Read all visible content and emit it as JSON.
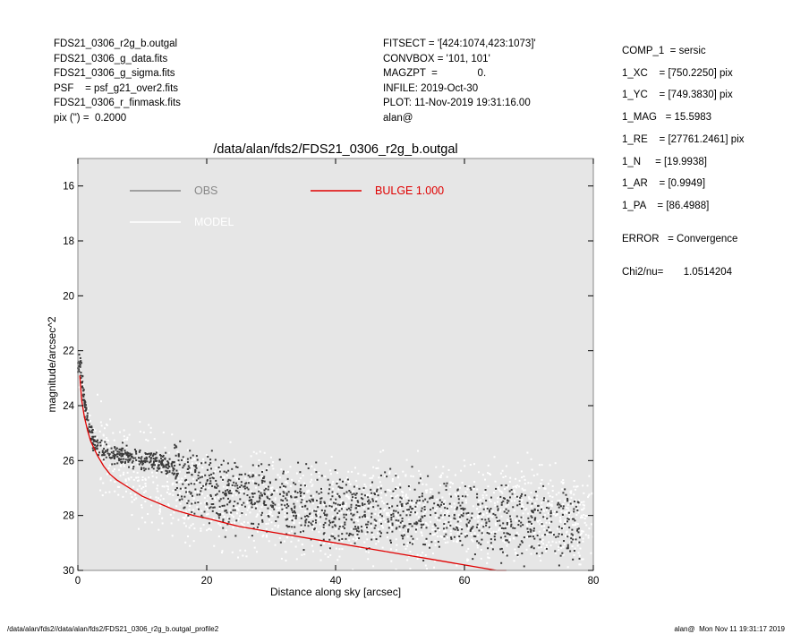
{
  "header_left": [
    "FDS21_0306_r2g_b.outgal",
    "FDS21_0306_g_data.fits",
    "FDS21_0306_g_sigma.fits",
    "PSF    = psf_g21_over2.fits",
    "FDS21_0306_r_finmask.fits",
    "pix (\") =  0.2000"
  ],
  "header_mid": [
    "FITSECT = '[424:1074,423:1073]'",
    "CONVBOX = '101, 101'",
    "MAGZPT  =              0.",
    "INFILE: 2019-Oct-30",
    "PLOT: 11-Nov-2019 19:31:16.00",
    "alan@"
  ],
  "params": [
    "COMP_1  = sersic",
    "1_XC    = [750.2250] pix",
    "1_YC    = [749.3830] pix",
    "1_MAG   = 15.5983",
    "1_RE    = [27761.2461] pix",
    "1_N     = [19.9938]",
    "1_AR    = [0.9949]",
    "1_PA    = [86.4988]",
    "ERROR   = Convergence",
    "Chi2/nu=       1.0514204"
  ],
  "footer_left": "/data/alan/fds2//data/alan/fds2/FDS21_0306_r2g_b.outgal_profile2",
  "footer_right": "alan@  Mon Nov 11 19:31:17 2019",
  "colors": {
    "plot_bg": "#e6e6e6",
    "obs": "#3a3a3a",
    "model": "#ffffff",
    "bulge": "#e00000",
    "obs_legend": "#888888"
  },
  "chart_data": {
    "type": "scatter",
    "title": "/data/alan/fds2/FDS21_0306_r2g_b.outgal",
    "xlabel": "Distance along sky [arcsec]",
    "ylabel": "magnitude/arcsec^2",
    "xlim": [
      0,
      80
    ],
    "ylim": [
      30,
      15
    ],
    "y_inverted": true,
    "xticks": [
      0,
      20,
      40,
      60,
      80
    ],
    "yticks": [
      16,
      18,
      20,
      22,
      24,
      26,
      28,
      30
    ],
    "legend": [
      {
        "label": "OBS",
        "color": "#888888"
      },
      {
        "label": "MODEL",
        "color": "#ffffff"
      },
      {
        "label": "BULGE  1.000",
        "color": "#e00000"
      }
    ],
    "series": [
      {
        "name": "OBS",
        "x": [
          0.4,
          0.6,
          0.9,
          1.2,
          1.5,
          1.8,
          2.1,
          2.5,
          3.0,
          3.5,
          4.0,
          4.5,
          5.0,
          5.5,
          6.0,
          7.0,
          8.0,
          9.0,
          10.0,
          11.0,
          12.0,
          13.0,
          14.0,
          15.0,
          16.0,
          17.0,
          18.0,
          20.0,
          22.0,
          24.0,
          26.0,
          28.0,
          30.0,
          32.0,
          34.0,
          36.0,
          38.0,
          40.0,
          42.0,
          44.0,
          46.0,
          48.0,
          50.0,
          52.0,
          54.0,
          56.0,
          58.0,
          60.0,
          62.0,
          64.0,
          66.0,
          68.0,
          70.0,
          72.0,
          74.0,
          76.0,
          78.0
        ],
        "y": [
          22.5,
          23.0,
          23.6,
          24.2,
          24.5,
          24.8,
          25.0,
          25.2,
          25.4,
          25.5,
          25.6,
          25.6,
          25.7,
          25.7,
          25.8,
          25.8,
          25.9,
          25.9,
          26.0,
          26.0,
          26.0,
          26.1,
          26.2,
          26.3,
          26.5,
          26.6,
          26.7,
          26.9,
          27.1,
          27.2,
          27.3,
          27.4,
          27.5,
          27.5,
          27.6,
          27.7,
          27.7,
          27.8,
          27.8,
          27.9,
          27.9,
          27.9,
          28.0,
          28.0,
          28.0,
          28.1,
          28.1,
          28.1,
          28.2,
          28.2,
          28.2,
          28.3,
          28.3,
          28.3,
          28.3,
          28.4,
          28.4
        ],
        "scatter_sigma": 0.7
      },
      {
        "name": "MODEL",
        "x": [
          0.5,
          1.0,
          2.0,
          3.0,
          5.0,
          8.0,
          10.0,
          15.0,
          20.0,
          25.0,
          30.0,
          35.0,
          40.0,
          45.0,
          50.0,
          55.0,
          60.0,
          65.0,
          70.0,
          75.0,
          80.0
        ],
        "y": [
          23.0,
          23.8,
          24.9,
          25.4,
          25.9,
          26.3,
          26.6,
          27.0,
          27.3,
          27.5,
          27.6,
          27.7,
          27.8,
          27.9,
          27.9,
          28.0,
          28.0,
          28.0,
          28.0,
          28.1,
          28.1
        ],
        "scatter_sigma": 1.1
      },
      {
        "name": "BULGE  1.000",
        "x": [
          0.3,
          0.6,
          1.0,
          1.5,
          2.0,
          3.0,
          4.0,
          5.0,
          6.0,
          8.0,
          10.0,
          12.0,
          15.0,
          18.0,
          20.0,
          25.0,
          30.0,
          35.0,
          40.0,
          45.0,
          50.0,
          55.0,
          60.0,
          65.0,
          66.5
        ],
        "y": [
          22.9,
          23.8,
          24.4,
          24.9,
          25.3,
          25.8,
          26.2,
          26.5,
          26.7,
          27.0,
          27.3,
          27.5,
          27.8,
          28.0,
          28.1,
          28.4,
          28.6,
          28.8,
          29.0,
          29.2,
          29.4,
          29.6,
          29.8,
          30.0,
          30.05
        ]
      }
    ]
  }
}
